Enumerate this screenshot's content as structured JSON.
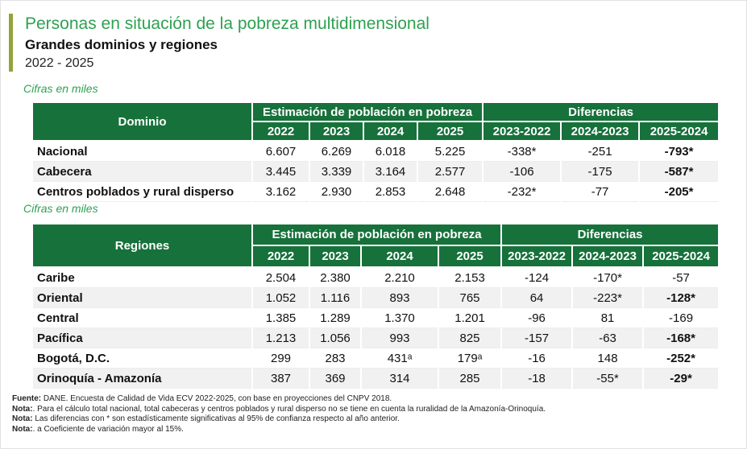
{
  "header": {
    "title": "Personas en situación de la pobreza multidimensional",
    "subtitle": "Grandes dominios y regiones",
    "period": "2022 - 2025"
  },
  "units_label": "Cifras en miles",
  "colors": {
    "header-green": "#17713B",
    "title-green": "#2EA150",
    "accent-olive": "#93A33C",
    "row-alt": "#F1F1F2"
  },
  "tables": [
    {
      "label_header": "Dominio",
      "group_headers": [
        "Estimación de población en pobreza",
        "Diferencias"
      ],
      "year_headers": [
        "2022",
        "2023",
        "2024",
        "2025"
      ],
      "diff_headers": [
        "2023-2022",
        "2024-2023",
        "2025-2024"
      ],
      "rows": [
        {
          "label": "Nacional",
          "values": [
            "6.607",
            "6.269",
            "6.018",
            "5.225"
          ],
          "diffs": [
            "-338*",
            "-251",
            "-793*"
          ]
        },
        {
          "label": "Cabecera",
          "values": [
            "3.445",
            "3.339",
            "3.164",
            "2.577"
          ],
          "diffs": [
            "-106",
            "-175",
            "-587*"
          ]
        },
        {
          "label": "Centros poblados y rural disperso",
          "values": [
            "3.162",
            "2.930",
            "2.853",
            "2.648"
          ],
          "diffs": [
            "-232*",
            "-77",
            "-205*"
          ]
        }
      ]
    },
    {
      "label_header": "Regiones",
      "group_headers": [
        "Estimación de población en pobreza",
        "Diferencias"
      ],
      "year_headers": [
        "2022",
        "2023",
        "2024",
        "2025"
      ],
      "diff_headers": [
        "2023-2022",
        "2024-2023",
        "2025-2024"
      ],
      "rows": [
        {
          "label": "Caribe",
          "values": [
            "2.504",
            "2.380",
            "2.210",
            "2.153"
          ],
          "diffs": [
            "-124",
            "-170*",
            "-57"
          ]
        },
        {
          "label": "Oriental",
          "values": [
            "1.052",
            "1.116",
            "893",
            "765"
          ],
          "diffs": [
            "64",
            "-223*",
            "-128*"
          ]
        },
        {
          "label": "Central",
          "values": [
            "1.385",
            "1.289",
            "1.370",
            "1.201"
          ],
          "diffs": [
            "-96",
            "81",
            "-169"
          ]
        },
        {
          "label": "Pacífica",
          "values": [
            "1.213",
            "1.056",
            "993",
            "825"
          ],
          "diffs": [
            "-157",
            "-63",
            "-168*"
          ]
        },
        {
          "label": "Bogotá, D.C.",
          "values": [
            "299",
            "283",
            "431ᵃ",
            "179ᵃ"
          ],
          "diffs": [
            "-16",
            "148",
            "-252*"
          ]
        },
        {
          "label": "Orinoquía - Amazonía",
          "values": [
            "387",
            "369",
            "314",
            "285"
          ],
          "diffs": [
            "-18",
            "-55*",
            "-29*"
          ]
        }
      ]
    }
  ],
  "footnotes": [
    {
      "label": "Fuente:",
      "text": " DANE. Encuesta de Calidad de Vida ECV 2022-2025, con base en proyecciones del CNPV 2018."
    },
    {
      "label": "Nota:",
      "text": ". Para el cálculo total nacional, total cabeceras y centros poblados y rural disperso no se tiene en cuenta la ruralidad de la Amazonía-Orinoquía."
    },
    {
      "label": "Nota:",
      "text": " Las diferencias con * son estadísticamente significativas al 95% de confianza respecto al año anterior."
    },
    {
      "label": "Nota:",
      "text": ". a Coeficiente de variación mayor al 15%."
    }
  ]
}
